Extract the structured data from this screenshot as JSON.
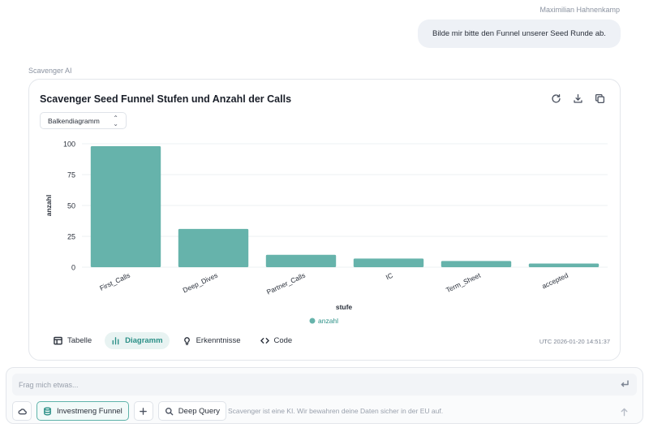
{
  "user_message": {
    "author": "Maximilian Hahnenkamp",
    "text": "Bilde mir bitte den Funnel unserer Seed Runde ab."
  },
  "assistant": {
    "name": "Scavenger AI"
  },
  "card": {
    "title": "Scavenger Seed Funnel Stufen und Anzahl der Calls",
    "chart_type_select": "Balkendiagramm",
    "actions": [
      "refresh-icon",
      "download-icon",
      "copy-icon"
    ],
    "tabs": [
      {
        "label": "Tabelle",
        "icon": "table-icon",
        "active": false
      },
      {
        "label": "Diagramm",
        "icon": "bar-chart-icon",
        "active": true
      },
      {
        "label": "Erkenntnisse",
        "icon": "lightbulb-icon",
        "active": false
      },
      {
        "label": "Code",
        "icon": "code-icon",
        "active": false
      }
    ],
    "timestamp": "UTC 2026-01-20 14:51:37"
  },
  "chart_data": {
    "type": "bar",
    "categories": [
      "First_Calls",
      "Deep_Dives",
      "Partner_Calls",
      "IC",
      "Term_Sheet",
      "accepted"
    ],
    "series": [
      {
        "name": "anzahl",
        "values": [
          98,
          31,
          10,
          7,
          5,
          3
        ]
      }
    ],
    "xlabel": "stufe",
    "ylabel": "anzahl",
    "ylim": [
      0,
      100
    ],
    "yticks": [
      0,
      25,
      50,
      75,
      100
    ],
    "color": "#66b3ab",
    "grid": true,
    "legend": "bottom-center"
  },
  "composer": {
    "placeholder": "Frag mich etwas...",
    "buttons": {
      "dataset": "Investmeng Funnel",
      "deep_query": "Deep Query"
    },
    "disclaimer": "Scavenger ist eine KI. Wir bewahren deine Daten sicher in der EU auf."
  }
}
